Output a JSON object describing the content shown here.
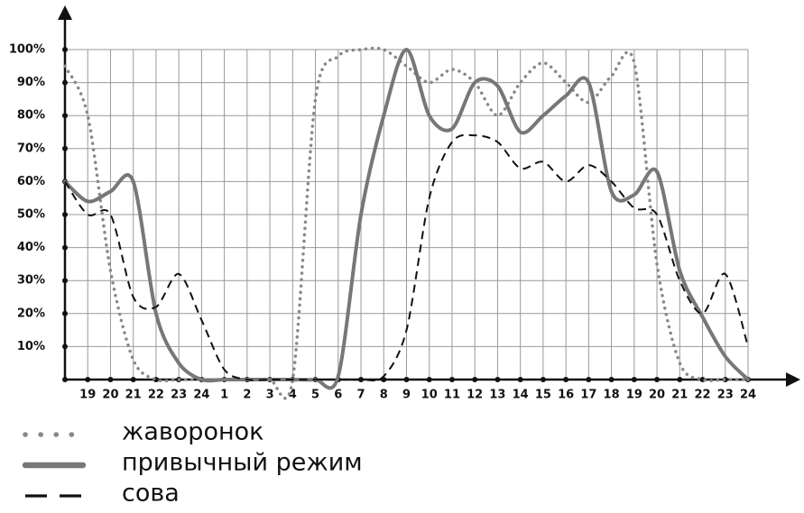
{
  "chart_data": {
    "type": "line",
    "categories": [
      null,
      "19",
      "20",
      "21",
      "22",
      "23",
      "24",
      "1",
      "2",
      "3",
      "4",
      "5",
      "6",
      "7",
      "8",
      "9",
      "10",
      "11",
      "12",
      "13",
      "14",
      "15",
      "16",
      "17",
      "18",
      "19",
      "20",
      "21",
      "22",
      "23",
      "24"
    ],
    "series": [
      {
        "name": "жаворонок",
        "color": "#888888",
        "style": "dotted",
        "values": [
          95,
          80,
          33,
          6,
          0,
          0,
          0,
          0,
          0,
          0,
          0,
          85,
          98,
          100,
          100,
          95,
          90,
          94,
          90,
          80,
          90,
          96,
          90,
          84,
          92,
          96,
          35,
          5,
          0,
          0,
          0
        ]
      },
      {
        "name": "привычный режим",
        "color": "#777777",
        "style": "solid",
        "values": [
          60,
          54,
          57,
          60,
          20,
          5,
          0,
          0,
          0,
          0,
          0,
          0,
          1,
          50,
          80,
          100,
          80,
          76,
          90,
          89,
          75,
          80,
          86,
          90,
          57,
          56,
          63,
          33,
          19,
          7,
          0
        ]
      },
      {
        "name": "сова",
        "color": "#111111",
        "style": "dashed",
        "values": [
          60,
          50,
          50,
          25,
          22,
          32,
          18,
          3,
          0,
          0,
          0,
          0,
          0,
          0,
          1,
          15,
          55,
          72,
          74,
          72,
          64,
          66,
          60,
          65,
          60,
          52,
          50,
          30,
          20,
          32,
          10
        ]
      }
    ],
    "ylim": [
      0,
      100
    ],
    "yticks": [
      {
        "value": 10,
        "label": "10%"
      },
      {
        "value": 20,
        "label": "20%"
      },
      {
        "value": 30,
        "label": "30%"
      },
      {
        "value": 40,
        "label": "40%"
      },
      {
        "value": 50,
        "label": "50%"
      },
      {
        "value": 60,
        "label": "60%"
      },
      {
        "value": 70,
        "label": "70%"
      },
      {
        "value": 80,
        "label": "80%"
      },
      {
        "value": 90,
        "label": "90%"
      },
      {
        "value": 100,
        "label": "100%"
      }
    ],
    "grid": true
  }
}
